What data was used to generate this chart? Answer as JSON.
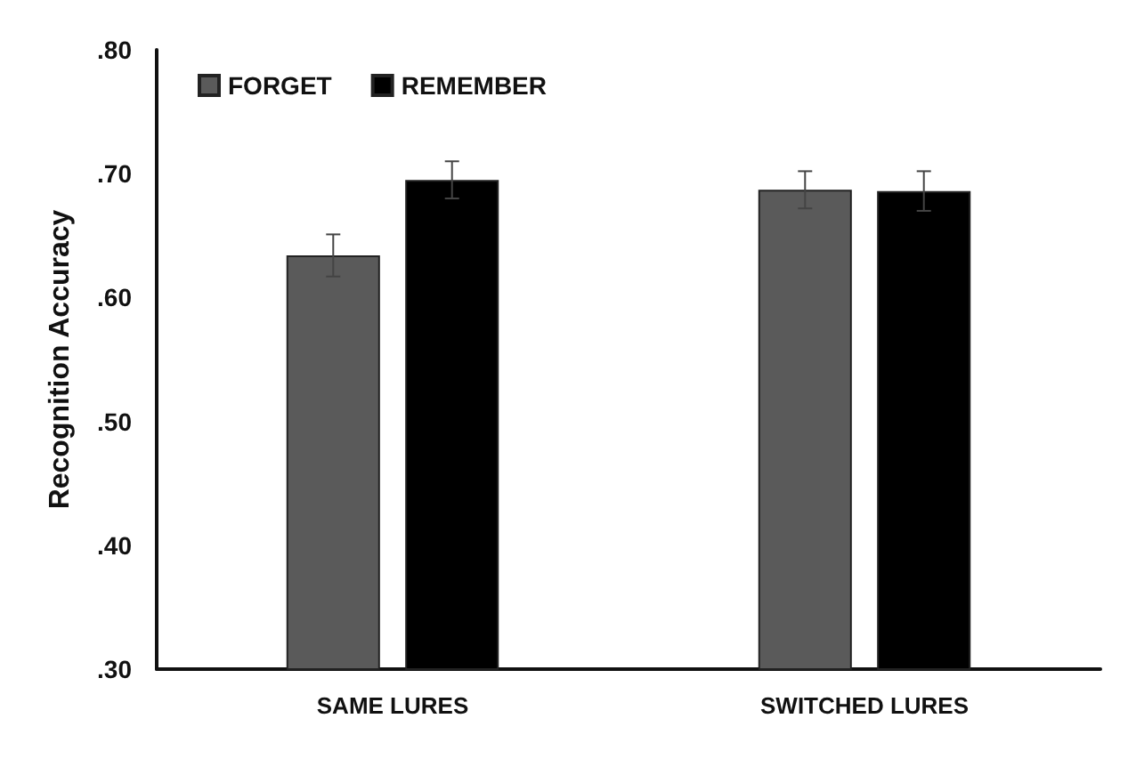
{
  "chart_data": {
    "type": "bar",
    "ylabel": "Recognition Accuracy",
    "categories": [
      "SAME LURES",
      "SWITCHED LURES"
    ],
    "series": [
      {
        "name": "FORGET",
        "color": "#5a5a5a",
        "values": [
          0.634,
          0.687
        ],
        "errors": [
          0.017,
          0.015
        ]
      },
      {
        "name": "REMEMBER",
        "color": "#000000",
        "values": [
          0.695,
          0.686
        ],
        "errors": [
          0.015,
          0.016
        ]
      }
    ],
    "ylim": [
      0.3,
      0.8
    ],
    "yticks": [
      {
        "value": 0.3,
        "label": ".30"
      },
      {
        "value": 0.4,
        "label": ".40"
      },
      {
        "value": 0.5,
        "label": ".50"
      },
      {
        "value": 0.6,
        "label": ".60"
      },
      {
        "value": 0.7,
        "label": ".70"
      },
      {
        "value": 0.8,
        "label": ".80"
      }
    ],
    "grid": false,
    "legend": "top left"
  }
}
